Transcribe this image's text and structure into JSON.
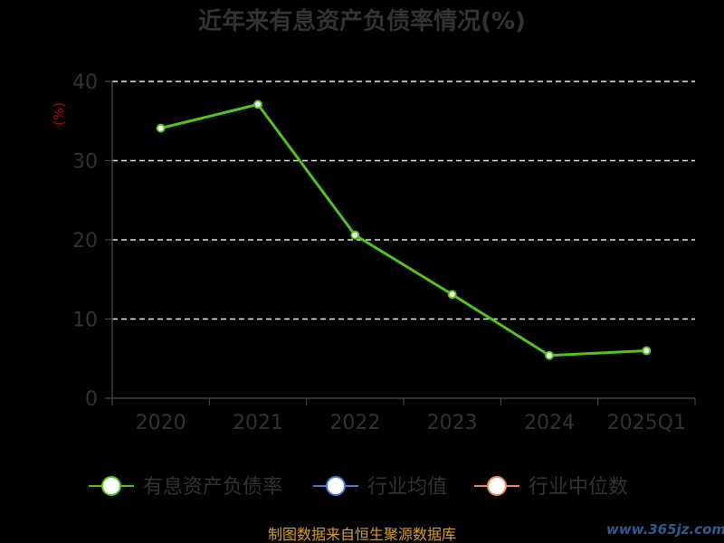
{
  "chart_data": {
    "type": "line",
    "title": "近年来有息资产负债率情况(%)",
    "ylabel": "(%)",
    "xlabel": "",
    "categories": [
      "2020",
      "2021",
      "2022",
      "2023",
      "2024",
      "2025Q1"
    ],
    "ylim": [
      0,
      40
    ],
    "yticks": [
      0,
      10,
      20,
      30,
      40
    ],
    "grid": true,
    "series": [
      {
        "name": "有息资产负债率",
        "values": [
          34.1,
          37.1,
          20.6,
          13.1,
          5.4,
          6.0
        ],
        "color": "#52c41a"
      }
    ],
    "legend": [
      {
        "label": "有息资产负债率",
        "color": "#52c41a"
      },
      {
        "label": "行业均值",
        "color": "#4a78d8"
      },
      {
        "label": "行业中位数",
        "color": "#f08a5d"
      }
    ],
    "legend_position": "bottom"
  },
  "footer": {
    "source": "制图数据来自恒生聚源数据库",
    "watermark": "www.365jz.com"
  }
}
